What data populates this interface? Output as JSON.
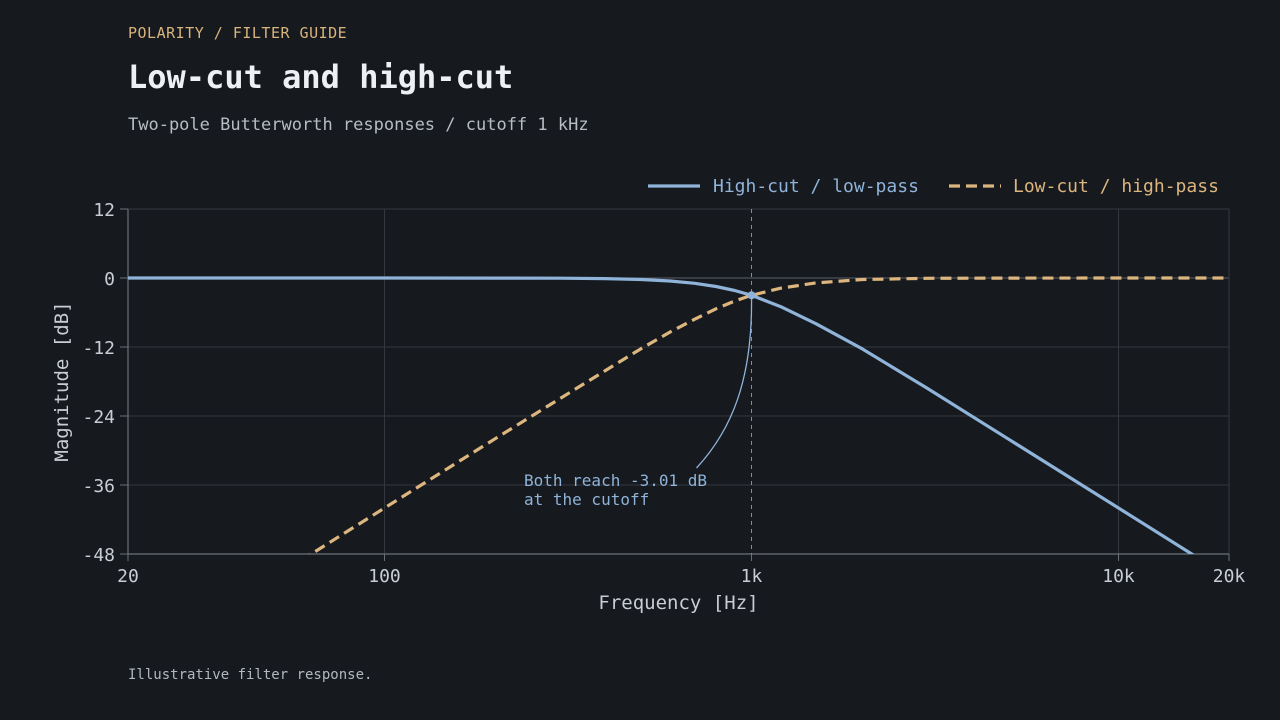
{
  "header": {
    "eyebrow": "POLARITY / FILTER GUIDE",
    "title": "Low-cut and high-cut",
    "subtitle": "Two-pole Butterworth responses / cutoff 1 kHz"
  },
  "footnote": "Illustrative filter response.",
  "colors": {
    "background": "#16191e",
    "accent": "#d9b47d",
    "high_cut": "#8fb3d9",
    "low_cut": "#dcb67e",
    "grid": "#343840",
    "axis_text": "#c9cdd4"
  },
  "chart_data": {
    "type": "line",
    "xlabel": "Frequency [Hz]",
    "ylabel": "Magnitude [dB]",
    "x_scale": "log",
    "xlim": [
      20,
      20000
    ],
    "ylim": [
      -48,
      12
    ],
    "x_ticks": [
      20,
      100,
      1000,
      10000,
      20000
    ],
    "x_tick_labels": [
      "20",
      "100",
      "1k",
      "10k",
      "20k"
    ],
    "y_ticks": [
      12,
      0,
      -12,
      -24,
      -36,
      -48
    ],
    "y_tick_labels": [
      "12",
      "0",
      "-12",
      "-24",
      "-36",
      "-48"
    ],
    "grid": true,
    "legend_position": "top-right",
    "cutoff_hz": 1000,
    "series": [
      {
        "name": "High-cut / low-pass",
        "style": "solid",
        "color": "#8fb3d9",
        "x": [
          20,
          50,
          100,
          200,
          300,
          400,
          500,
          600,
          700,
          800,
          900,
          1000,
          1200,
          1500,
          2000,
          3000,
          5000,
          10000,
          16200,
          20000
        ],
        "y": [
          0.0,
          0.0,
          0.0,
          -0.01,
          -0.04,
          -0.11,
          -0.26,
          -0.52,
          -0.92,
          -1.47,
          -2.17,
          -3.01,
          -4.97,
          -7.96,
          -12.3,
          -19.12,
          -27.97,
          -40.0,
          -48.4,
          -52.04
        ]
      },
      {
        "name": "Low-cut / high-pass",
        "style": "dashed",
        "color": "#dcb67e",
        "x": [
          20,
          50,
          61.7,
          100,
          200,
          300,
          400,
          500,
          600,
          700,
          800,
          900,
          1000,
          1200,
          1500,
          2000,
          3000,
          5000,
          10000,
          20000
        ],
        "y": [
          -67.96,
          -52.04,
          -48.4,
          -40.0,
          -27.97,
          -21.0,
          -16.09,
          -12.3,
          -9.4,
          -7.16,
          -5.35,
          -4.0,
          -3.01,
          -1.77,
          -0.85,
          -0.26,
          -0.05,
          -0.01,
          0.0,
          0.0
        ]
      }
    ],
    "annotations": [
      {
        "lines": [
          "Both reach -3.01 dB",
          "at the cutoff"
        ],
        "x": 1000,
        "y": -3.01
      }
    ]
  }
}
